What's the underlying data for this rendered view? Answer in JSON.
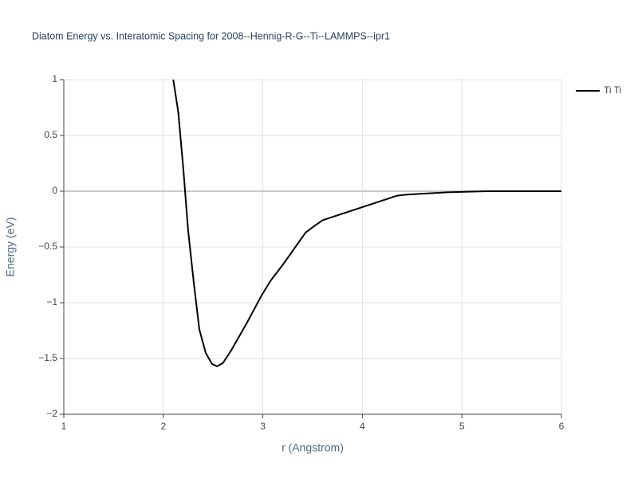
{
  "chart_data": {
    "type": "line",
    "title": "Diatom Energy vs. Interatomic Spacing for 2008--Hennig-R-G--Ti--LAMMPS--ipr1",
    "x_label": "r (Angstrom)",
    "y_label": "Energy (eV)",
    "xlim": [
      1,
      6
    ],
    "ylim": [
      -2,
      1
    ],
    "xticks": [
      1,
      2,
      3,
      4,
      5,
      6
    ],
    "yticks": [
      1,
      0.5,
      0,
      {
        "value": -0.5,
        "label": "−0.5"
      },
      {
        "value": -1,
        "label": "−1"
      },
      {
        "value": -1.5,
        "label": "−1.5"
      },
      {
        "value": -2,
        "label": "−2"
      }
    ],
    "grid": true,
    "legend": "top-right",
    "series": [
      {
        "name": "Ti Ti",
        "color": "#000000",
        "x": [
          2.1,
          2.15,
          2.2,
          2.25,
          2.306,
          2.362,
          2.426,
          2.49,
          2.54,
          2.6,
          2.68,
          2.84,
          2.99,
          3.08,
          3.2,
          3.43,
          3.52,
          3.6,
          4.35,
          4.45,
          4.85,
          5.25,
          6
        ],
        "values": [
          1,
          0.71,
          0.21,
          -0.36,
          -0.82,
          -1.24,
          -1.45,
          -1.55,
          -1.57,
          -1.54,
          -1.43,
          -1.18,
          -0.93,
          -0.8,
          -0.66,
          -0.37,
          -0.31,
          -0.26,
          -0.04,
          -0.03,
          -0.01,
          0,
          0
        ]
      }
    ]
  }
}
